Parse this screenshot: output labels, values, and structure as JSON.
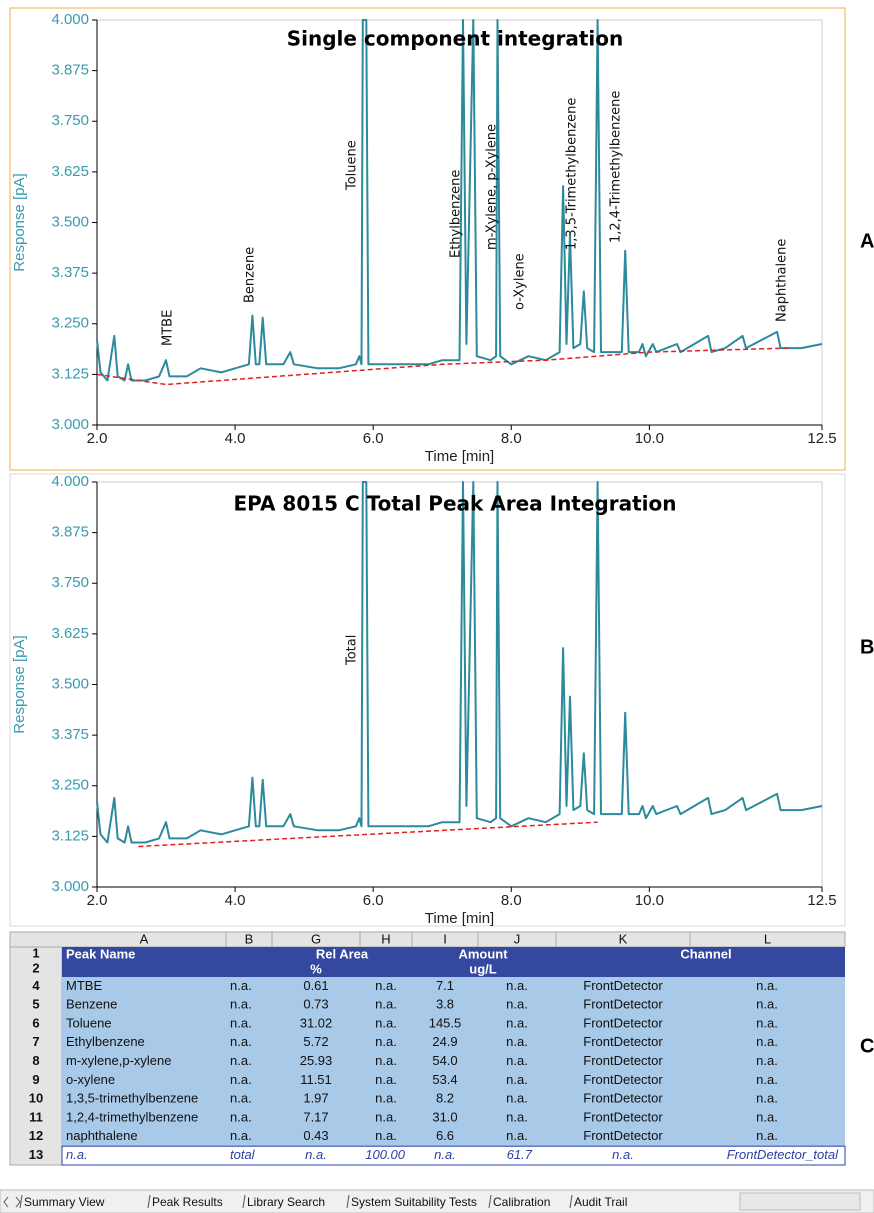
{
  "chart_data": [
    {
      "type": "line",
      "title": "Single component integration",
      "x_label": "Time [min]",
      "y_label": "Response [pA]",
      "xlim": [
        2,
        12.5
      ],
      "ylim": [
        3,
        4
      ],
      "xticks": [
        {
          "value": 2,
          "label": "2.0"
        },
        {
          "value": 4,
          "label": "4.0"
        },
        {
          "value": 6,
          "label": "6.0"
        },
        {
          "value": 8,
          "label": "8.0"
        },
        {
          "value": 10,
          "label": "10.0"
        },
        12.5
      ],
      "yticks": [
        {
          "value": 3,
          "label": "3.000"
        },
        3.125,
        {
          "value": 3.25,
          "label": "3.250"
        },
        3.375,
        {
          "value": 3.5,
          "label": "3.500"
        },
        3.625,
        {
          "value": 3.75,
          "label": "3.750"
        },
        3.875,
        {
          "value": 4,
          "label": "4.000"
        }
      ],
      "series": [
        {
          "color": "#2b8a9c",
          "style": "solid",
          "x": [
            2.0,
            2.05,
            2.15,
            2.25,
            2.3,
            2.4,
            2.45,
            2.5,
            2.7,
            2.9,
            3.0,
            3.05,
            3.3,
            3.5,
            3.8,
            4.0,
            4.2,
            4.25,
            4.3,
            4.35,
            4.4,
            4.45,
            4.7,
            4.8,
            4.85,
            5.2,
            5.5,
            5.75,
            5.8,
            5.83,
            5.85,
            5.9,
            5.93,
            6.2,
            6.5,
            6.8,
            7.0,
            7.25,
            7.3,
            7.35,
            7.45,
            7.5,
            7.7,
            7.78,
            7.8,
            7.84,
            8.0,
            8.25,
            8.5,
            8.7,
            8.75,
            8.8,
            8.85,
            8.9,
            9.0,
            9.05,
            9.1,
            9.2,
            9.25,
            9.3,
            9.5,
            9.6,
            9.65,
            9.7,
            9.85,
            9.9,
            9.95,
            10.05,
            10.1,
            10.4,
            10.45,
            10.85,
            10.9,
            11.1,
            11.35,
            11.4,
            11.85,
            11.9,
            12.2,
            12.5
          ],
          "values": [
            3.21,
            3.13,
            3.11,
            3.22,
            3.12,
            3.11,
            3.15,
            3.11,
            3.11,
            3.12,
            3.16,
            3.12,
            3.12,
            3.14,
            3.13,
            3.14,
            3.15,
            3.27,
            3.15,
            3.15,
            3.265,
            3.15,
            3.15,
            3.18,
            3.15,
            3.14,
            3.14,
            3.15,
            3.17,
            3.15,
            4.0,
            4.0,
            3.15,
            3.15,
            3.15,
            3.15,
            3.16,
            3.16,
            4.0,
            3.2,
            4.0,
            3.17,
            3.16,
            3.17,
            4.0,
            3.17,
            3.15,
            3.17,
            3.16,
            3.18,
            3.59,
            3.2,
            3.47,
            3.19,
            3.2,
            3.33,
            3.19,
            3.18,
            4.0,
            3.18,
            3.18,
            3.18,
            3.43,
            3.18,
            3.18,
            3.2,
            3.17,
            3.2,
            3.18,
            3.2,
            3.18,
            3.22,
            3.18,
            3.19,
            3.22,
            3.19,
            3.23,
            3.19,
            3.19,
            3.2
          ]
        },
        {
          "color": "#e02020",
          "style": "dashed",
          "x": [
            2.0,
            3.0,
            5.0,
            7.0,
            8.5,
            10.0,
            12.0
          ],
          "values": [
            3.125,
            3.1,
            3.125,
            3.15,
            3.16,
            3.18,
            3.19
          ]
        }
      ],
      "annotations": [
        "MTBE",
        "Benzene",
        "Toluene",
        "Ethylbenzene",
        "m-Xylene, p-Xylene",
        "o-Xylene",
        "1,3,5-Trimethylbenzene",
        "1,2,4-Trimethylbenzene",
        "Naphthalene"
      ]
    },
    {
      "type": "line",
      "title": "EPA 8015 C Total Peak Area Integration",
      "x_label": "Time [min]",
      "y_label": "Response [pA]",
      "xlim": [
        2,
        12.5
      ],
      "ylim": [
        3,
        4
      ],
      "xticks": [
        {
          "value": 2,
          "label": "2.0"
        },
        {
          "value": 4,
          "label": "4.0"
        },
        {
          "value": 6,
          "label": "6.0"
        },
        {
          "value": 8,
          "label": "8.0"
        },
        {
          "value": 10,
          "label": "10.0"
        },
        12.5
      ],
      "yticks": [
        {
          "value": 3,
          "label": "3.000"
        },
        3.125,
        {
          "value": 3.25,
          "label": "3.250"
        },
        3.375,
        {
          "value": 3.5,
          "label": "3.500"
        },
        3.625,
        {
          "value": 3.75,
          "label": "3.750"
        },
        3.875,
        {
          "value": 4,
          "label": "4.000"
        }
      ],
      "series": [
        {
          "color": "#2b8a9c",
          "style": "solid",
          "x": [
            2.0,
            2.05,
            2.15,
            2.25,
            2.3,
            2.4,
            2.45,
            2.5,
            2.7,
            2.9,
            3.0,
            3.05,
            3.3,
            3.5,
            3.8,
            4.0,
            4.2,
            4.25,
            4.3,
            4.35,
            4.4,
            4.45,
            4.7,
            4.8,
            4.85,
            5.2,
            5.5,
            5.75,
            5.8,
            5.83,
            5.85,
            5.9,
            5.93,
            6.2,
            6.5,
            6.8,
            7.0,
            7.25,
            7.3,
            7.35,
            7.45,
            7.5,
            7.7,
            7.78,
            7.8,
            7.84,
            8.0,
            8.25,
            8.5,
            8.7,
            8.75,
            8.8,
            8.85,
            8.9,
            9.0,
            9.05,
            9.1,
            9.2,
            9.25,
            9.3,
            9.5,
            9.6,
            9.65,
            9.7,
            9.85,
            9.9,
            9.95,
            10.05,
            10.1,
            10.4,
            10.45,
            10.85,
            10.9,
            11.1,
            11.35,
            11.4,
            11.85,
            11.9,
            12.2,
            12.5
          ],
          "values": [
            3.21,
            3.13,
            3.11,
            3.22,
            3.12,
            3.11,
            3.15,
            3.11,
            3.11,
            3.12,
            3.16,
            3.12,
            3.12,
            3.14,
            3.13,
            3.14,
            3.15,
            3.27,
            3.15,
            3.15,
            3.265,
            3.15,
            3.15,
            3.18,
            3.15,
            3.14,
            3.14,
            3.15,
            3.17,
            3.15,
            4.0,
            4.0,
            3.15,
            3.15,
            3.15,
            3.15,
            3.16,
            3.16,
            4.0,
            3.2,
            4.0,
            3.17,
            3.16,
            3.17,
            4.0,
            3.17,
            3.15,
            3.17,
            3.16,
            3.18,
            3.59,
            3.2,
            3.47,
            3.19,
            3.2,
            3.33,
            3.19,
            3.18,
            4.0,
            3.18,
            3.18,
            3.18,
            3.43,
            3.18,
            3.18,
            3.2,
            3.17,
            3.2,
            3.18,
            3.2,
            3.18,
            3.22,
            3.18,
            3.19,
            3.22,
            3.19,
            3.23,
            3.19,
            3.19,
            3.2
          ]
        },
        {
          "color": "#e02020",
          "style": "dashed",
          "x": [
            2.6,
            9.25
          ],
          "values": [
            3.1,
            3.16
          ]
        }
      ],
      "annotations": [
        "Total"
      ]
    }
  ],
  "panel_labels": [
    "A",
    "B",
    "C"
  ],
  "table": {
    "columns": [
      "A",
      "B",
      "G",
      "H",
      "I",
      "J",
      "K",
      "L"
    ],
    "row_numbers": [
      "1",
      "2",
      "4",
      "5",
      "6",
      "7",
      "8",
      "9",
      "10",
      "11",
      "12",
      "13"
    ],
    "header": [
      [
        "Peak Name",
        "Rel Area",
        "Amount",
        "Channel"
      ],
      [
        "%",
        "ug/L"
      ]
    ],
    "rows": [
      [
        "MTBE",
        "n.a.",
        "0.61",
        "n.a.",
        "7.1",
        "n.a.",
        "FrontDetector",
        "n.a."
      ],
      [
        "Benzene",
        "n.a.",
        "0.73",
        "n.a.",
        "3.8",
        "n.a.",
        "FrontDetector",
        "n.a."
      ],
      [
        "Toluene",
        "n.a.",
        "31.02",
        "n.a.",
        "145.5",
        "n.a.",
        "FrontDetector",
        "n.a."
      ],
      [
        "Ethylbenzene",
        "n.a.",
        "5.72",
        "n.a.",
        "24.9",
        "n.a.",
        "FrontDetector",
        "n.a."
      ],
      [
        "m-xylene,p-xylene",
        "n.a.",
        "25.93",
        "n.a.",
        "54.0",
        "n.a.",
        "FrontDetector",
        "n.a."
      ],
      [
        "o-xylene",
        "n.a.",
        "11.51",
        "n.a.",
        "53.4",
        "n.a.",
        "FrontDetector",
        "n.a."
      ],
      [
        "1,3,5-trimethylbenzene",
        "n.a.",
        "1.97",
        "n.a.",
        "8.2",
        "n.a.",
        "FrontDetector",
        "n.a."
      ],
      [
        "1,2,4-trimethylbenzene",
        "n.a.",
        "7.17",
        "n.a.",
        "31.0",
        "n.a.",
        "FrontDetector",
        "n.a."
      ],
      [
        "naphthalene",
        "n.a.",
        "0.43",
        "n.a.",
        "6.6",
        "n.a.",
        "FrontDetector",
        "n.a."
      ]
    ],
    "total_row": [
      "n.a.",
      "total",
      "n.a.",
      "100.00",
      "n.a.",
      "61.7",
      "n.a.",
      "FrontDetector_total"
    ]
  },
  "tabs": [
    "Summary View",
    "Peak Results",
    "Library Search",
    "System Suitability Tests",
    "Calibration",
    "Audit Trail"
  ]
}
